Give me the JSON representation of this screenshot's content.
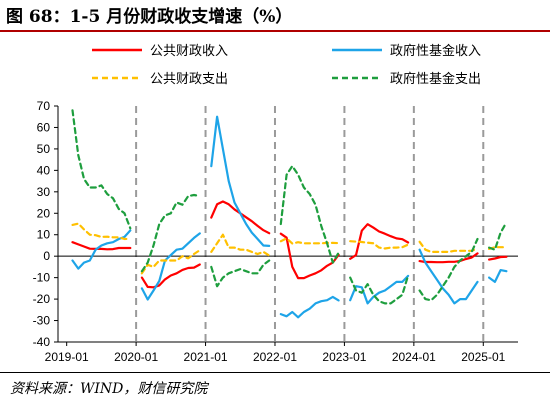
{
  "figure": {
    "title": "图 68：1-5 月份财政收支增速（%）",
    "source": "资料来源：WIND，财信研究院"
  },
  "chart_data": {
    "type": "line",
    "title": "",
    "xlabel": "",
    "ylabel": "",
    "ylim": [
      -40,
      70
    ],
    "yticks": [
      -40,
      -30,
      -20,
      -10,
      0,
      10,
      20,
      30,
      40,
      50,
      60,
      70
    ],
    "xlim": [
      "2019-01",
      "2025-05"
    ],
    "xticks": [
      "2019-01",
      "2020-01",
      "2021-01",
      "2022-01",
      "2023-01",
      "2024-01",
      "2025-01"
    ],
    "grid": false,
    "zero_line": true,
    "year_separators": [
      "2020-01",
      "2021-01",
      "2022-01",
      "2023-01",
      "2024-01",
      "2025-01"
    ],
    "legend": {
      "placement": "top",
      "columns": 2
    },
    "series": [
      {
        "name": "公共财政收入",
        "color": "#ff0000",
        "dash": "solid",
        "x": [
          "2019-02",
          "2019-03",
          "2019-04",
          "2019-05",
          "2019-06",
          "2019-07",
          "2019-08",
          "2019-09",
          "2019-10",
          "2019-11",
          "2019-12",
          "2020-02",
          "2020-03",
          "2020-04",
          "2020-05",
          "2020-06",
          "2020-07",
          "2020-08",
          "2020-09",
          "2020-10",
          "2020-11",
          "2020-12",
          "2021-02",
          "2021-03",
          "2021-04",
          "2021-05",
          "2021-06",
          "2021-07",
          "2021-08",
          "2021-09",
          "2021-10",
          "2021-11",
          "2021-12",
          "2022-02",
          "2022-03",
          "2022-04",
          "2022-05",
          "2022-06",
          "2022-07",
          "2022-08",
          "2022-09",
          "2022-10",
          "2022-11",
          "2022-12",
          "2023-02",
          "2023-03",
          "2023-04",
          "2023-05",
          "2023-06",
          "2023-07",
          "2023-08",
          "2023-09",
          "2023-10",
          "2023-11",
          "2023-12",
          "2024-02",
          "2024-03",
          "2024-04",
          "2024-05",
          "2024-06",
          "2024-07",
          "2024-08",
          "2024-09",
          "2024-10",
          "2024-11",
          "2024-12",
          "2025-02",
          "2025-03",
          "2025-04",
          "2025-05"
        ],
        "values": [
          6.5,
          5.5,
          4.5,
          3.5,
          3.4,
          3.4,
          3.2,
          3.3,
          3.8,
          3.8,
          3.8,
          -10,
          -14.3,
          -14.5,
          -13.6,
          -10.8,
          -9.0,
          -8.0,
          -6.4,
          -5.5,
          -5.3,
          -3.9,
          18,
          24.2,
          25.5,
          24.2,
          21.8,
          20.0,
          18.1,
          16.3,
          14.1,
          12.1,
          10.7,
          10.5,
          8.6,
          -5,
          -10.2,
          -10.2,
          -9.0,
          -8.0,
          -6.6,
          -4.5,
          -3.0,
          0.6,
          -1.2,
          0.5,
          11.9,
          14.9,
          13.3,
          11.5,
          10.5,
          9.3,
          8.3,
          7.9,
          6.4,
          -2.3,
          -2.7,
          -2.7,
          -2.8,
          -2.8,
          -2.6,
          -2.6,
          -2.2,
          -1.3,
          -0.6,
          1.3,
          -1.6,
          -1.1,
          -0.4,
          -0.3
        ]
      },
      {
        "name": "政府性基金收入",
        "color": "#1ea4e8",
        "dash": "solid",
        "x": [
          "2019-02",
          "2019-03",
          "2019-04",
          "2019-05",
          "2019-06",
          "2019-07",
          "2019-08",
          "2019-09",
          "2019-10",
          "2019-11",
          "2019-12",
          "2020-02",
          "2020-03",
          "2020-04",
          "2020-05",
          "2020-06",
          "2020-07",
          "2020-08",
          "2020-09",
          "2020-10",
          "2020-11",
          "2020-12",
          "2021-02",
          "2021-03",
          "2021-04",
          "2021-05",
          "2021-06",
          "2021-07",
          "2021-08",
          "2021-09",
          "2021-10",
          "2021-11",
          "2021-12",
          "2022-02",
          "2022-03",
          "2022-04",
          "2022-05",
          "2022-06",
          "2022-07",
          "2022-08",
          "2022-09",
          "2022-10",
          "2022-11",
          "2022-12",
          "2023-02",
          "2023-03",
          "2023-04",
          "2023-05",
          "2023-06",
          "2023-07",
          "2023-08",
          "2023-09",
          "2023-10",
          "2023-11",
          "2023-12",
          "2024-02",
          "2024-03",
          "2024-04",
          "2024-05",
          "2024-06",
          "2024-07",
          "2024-08",
          "2024-09",
          "2024-10",
          "2024-11",
          "2024-12",
          "2025-02",
          "2025-03",
          "2025-04",
          "2025-05"
        ],
        "values": [
          -2,
          -5.8,
          -3.0,
          -2.0,
          3.0,
          5.0,
          6.0,
          6.5,
          8.0,
          9.0,
          12.0,
          -15,
          -20.2,
          -16.0,
          -11.5,
          -2.0,
          0.5,
          3.0,
          3.5,
          6.0,
          8.5,
          10.6,
          42,
          65.0,
          50.0,
          35.0,
          25.0,
          20.0,
          15.0,
          11.0,
          8.0,
          5.0,
          4.8,
          -27,
          -28.0,
          -26.0,
          -28.5,
          -26.0,
          -24.5,
          -22.0,
          -21.0,
          -20.5,
          -19.0,
          -20.6,
          -20.5,
          -14.0,
          -14.5,
          -22.0,
          -19.0,
          -17.0,
          -16.0,
          -14.0,
          -12.0,
          -12.0,
          -9.2,
          3.0,
          -3.0,
          -7.0,
          -11.0,
          -15.0,
          -18.0,
          -22.0,
          -20.0,
          -20.0,
          -16.0,
          -12.0,
          -10.0,
          -12.0,
          -6.5,
          -7.0
        ]
      },
      {
        "name": "公共财政支出",
        "color": "#ffc000",
        "dash": "dash",
        "x": [
          "2019-02",
          "2019-03",
          "2019-04",
          "2019-05",
          "2019-06",
          "2019-07",
          "2019-08",
          "2019-09",
          "2019-10",
          "2019-11",
          "2019-12",
          "2020-02",
          "2020-03",
          "2020-04",
          "2020-05",
          "2020-06",
          "2020-07",
          "2020-08",
          "2020-09",
          "2020-10",
          "2020-11",
          "2020-12",
          "2021-02",
          "2021-03",
          "2021-04",
          "2021-05",
          "2021-06",
          "2021-07",
          "2021-08",
          "2021-09",
          "2021-10",
          "2021-11",
          "2021-12",
          "2022-02",
          "2022-03",
          "2022-04",
          "2022-05",
          "2022-06",
          "2022-07",
          "2022-08",
          "2022-09",
          "2022-10",
          "2022-11",
          "2022-12",
          "2023-02",
          "2023-03",
          "2023-04",
          "2023-05",
          "2023-06",
          "2023-07",
          "2023-08",
          "2023-09",
          "2023-10",
          "2023-11",
          "2023-12",
          "2024-02",
          "2024-03",
          "2024-04",
          "2024-05",
          "2024-06",
          "2024-07",
          "2024-08",
          "2024-09",
          "2024-10",
          "2024-11",
          "2024-12",
          "2025-02",
          "2025-03",
          "2025-04",
          "2025-05"
        ],
        "values": [
          14.6,
          15.2,
          12.5,
          10.0,
          9.8,
          9.0,
          9.1,
          8.8,
          8.8,
          8.0,
          8.1,
          -8,
          -4.0,
          -5.0,
          -2.0,
          -2.0,
          -2.0,
          -2.0,
          0.0,
          -1.0,
          1.0,
          2.8,
          2.0,
          6.0,
          10.0,
          4.0,
          4.0,
          3.0,
          3.0,
          2.0,
          1.0,
          2.0,
          0.3,
          7.0,
          8.3,
          5.9,
          6.5,
          6.0,
          6.0,
          6.0,
          6.0,
          6.2,
          6.2,
          6.1,
          7.0,
          6.8,
          6.6,
          6.3,
          6.0,
          4.0,
          3.6,
          4.0,
          4.0,
          4.2,
          5.4,
          6.7,
          3.0,
          2.0,
          2.0,
          2.0,
          2.0,
          2.5,
          2.5,
          2.5,
          2.5,
          3.6,
          3.4,
          4.2,
          4.2,
          4.2
        ]
      },
      {
        "name": "政府性基金支出",
        "color": "#1e9e3e",
        "dash": "dash",
        "x": [
          "2019-02",
          "2019-03",
          "2019-04",
          "2019-05",
          "2019-06",
          "2019-07",
          "2019-08",
          "2019-09",
          "2019-10",
          "2019-11",
          "2019-12",
          "2020-02",
          "2020-03",
          "2020-04",
          "2020-05",
          "2020-06",
          "2020-07",
          "2020-08",
          "2020-09",
          "2020-10",
          "2020-11",
          "2020-12",
          "2021-02",
          "2021-03",
          "2021-04",
          "2021-05",
          "2021-06",
          "2021-07",
          "2021-08",
          "2021-09",
          "2021-10",
          "2021-11",
          "2021-12",
          "2022-02",
          "2022-03",
          "2022-04",
          "2022-05",
          "2022-06",
          "2022-07",
          "2022-08",
          "2022-09",
          "2022-10",
          "2022-11",
          "2022-12",
          "2023-02",
          "2023-03",
          "2023-04",
          "2023-05",
          "2023-06",
          "2023-07",
          "2023-08",
          "2023-09",
          "2023-10",
          "2023-11",
          "2023-12",
          "2024-02",
          "2024-03",
          "2024-04",
          "2024-05",
          "2024-06",
          "2024-07",
          "2024-08",
          "2024-09",
          "2024-10",
          "2024-11",
          "2024-12",
          "2025-02",
          "2025-03",
          "2025-04",
          "2025-05"
        ],
        "values": [
          68,
          47.0,
          36.0,
          32.0,
          32.0,
          33.0,
          29.0,
          27.0,
          22.0,
          20.0,
          13.0,
          -7,
          -3.0,
          5.0,
          15.0,
          19.0,
          20.0,
          25.0,
          24.0,
          28.0,
          28.5,
          28.0,
          -5,
          -14.0,
          -10.0,
          -8.0,
          -7.0,
          -6.0,
          -7.0,
          -8.0,
          -8.0,
          -4.0,
          -2.0,
          15.0,
          38.0,
          42.0,
          38.0,
          32.0,
          29.0,
          24.0,
          14.0,
          6.0,
          -3.0,
          1.6,
          -10.0,
          -16.0,
          -17.0,
          -13.0,
          -18.0,
          -21.0,
          -22.0,
          -22.0,
          -20.0,
          -18.0,
          -9.0,
          -16.0,
          -20.0,
          -20.5,
          -18.0,
          -14.0,
          -10.0,
          -5.0,
          -2.0,
          0.0,
          2.0,
          8.0,
          4.0,
          3.0,
          11.0,
          15.7
        ]
      }
    ]
  }
}
